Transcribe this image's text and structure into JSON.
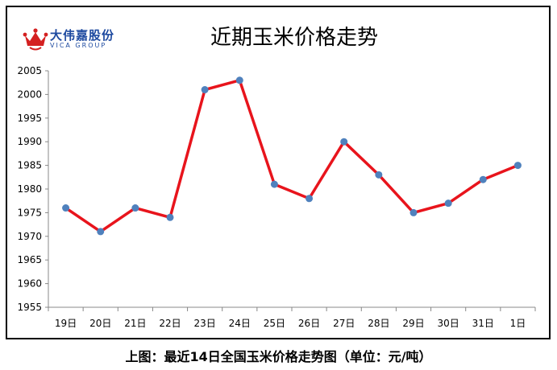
{
  "logo": {
    "name_cn": "大伟嘉股份",
    "name_en": "VICA GROUP",
    "brand_color": "#1e4aa0",
    "crown_color": "#d42020"
  },
  "caption": "上图：最近14日全国玉米价格走势图（单位：元/吨）",
  "chart_data": {
    "type": "line",
    "title": "近期玉米价格走势",
    "categories": [
      "19日",
      "20日",
      "21日",
      "22日",
      "23日",
      "24日",
      "25日",
      "26日",
      "27日",
      "28日",
      "29日",
      "30日",
      "31日",
      "1日"
    ],
    "series": [
      {
        "values": [
          1976,
          1971,
          1976,
          1974,
          2001,
          2003,
          1981,
          1978,
          1990,
          1983,
          1975,
          1977,
          1982,
          1985
        ],
        "line_color": "#e8141c",
        "marker_color": "#4f81bd"
      }
    ],
    "ylim": [
      1955,
      2005
    ],
    "yticks": [
      1955,
      1960,
      1965,
      1970,
      1975,
      1980,
      1985,
      1990,
      1995,
      2000,
      2005
    ],
    "xlabel": "",
    "ylabel": "",
    "grid": false,
    "legend": "none"
  }
}
